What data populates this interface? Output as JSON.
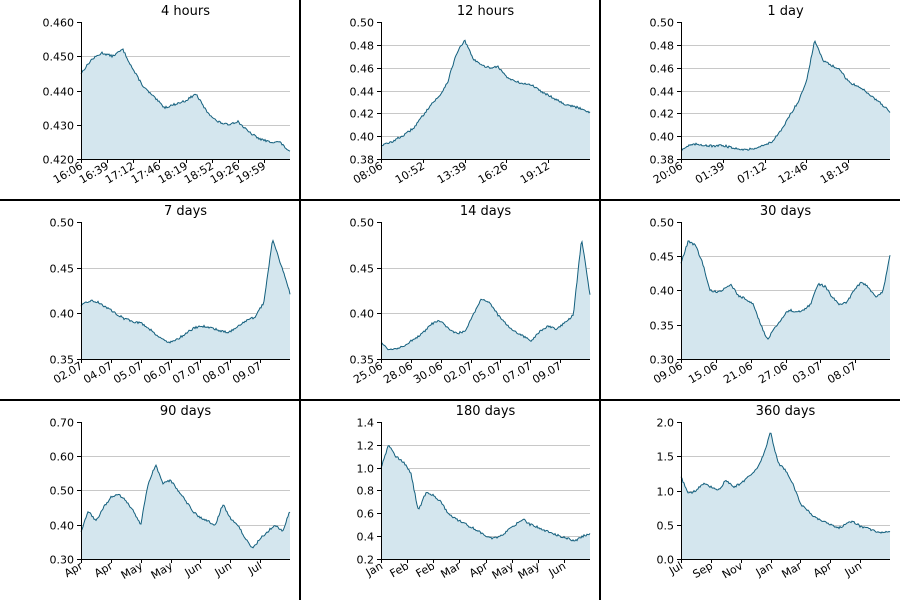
{
  "colors": {
    "line": "#135f7d",
    "area": "#d4e6ee",
    "grid": "#c8c8c8",
    "separator": "#000000"
  },
  "chart_data": [
    {
      "type": "area",
      "title": "4 hours",
      "ylim": [
        0.42,
        0.46
      ],
      "yticks": [
        "0.420",
        "0.430",
        "0.440",
        "0.450",
        "0.460"
      ],
      "xticks": [
        "16:06",
        "16:39",
        "17:12",
        "17:46",
        "18:19",
        "18:52",
        "19:26",
        "19:59"
      ],
      "grid": true,
      "series": [
        {
          "values": [
            0.445,
            0.449,
            0.451,
            0.45,
            0.452,
            0.446,
            0.441,
            0.438,
            0.435,
            0.436,
            0.437,
            0.439,
            0.434,
            0.431,
            0.43,
            0.431,
            0.428,
            0.426,
            0.425,
            0.425,
            0.422
          ]
        }
      ]
    },
    {
      "type": "area",
      "title": "12 hours",
      "ylim": [
        0.38,
        0.5
      ],
      "yticks": [
        "0.38",
        "0.40",
        "0.42",
        "0.44",
        "0.46",
        "0.48",
        "0.50"
      ],
      "xticks": [
        "08:06",
        "10:52",
        "13:39",
        "16:26",
        "19:12"
      ],
      "grid": true,
      "series": [
        {
          "values": [
            0.392,
            0.394,
            0.398,
            0.402,
            0.408,
            0.418,
            0.428,
            0.435,
            0.448,
            0.472,
            0.484,
            0.468,
            0.462,
            0.46,
            0.461,
            0.452,
            0.448,
            0.446,
            0.445,
            0.44,
            0.436,
            0.432,
            0.428,
            0.426,
            0.424,
            0.421
          ]
        }
      ]
    },
    {
      "type": "area",
      "title": "1 day",
      "ylim": [
        0.38,
        0.5
      ],
      "yticks": [
        "0.38",
        "0.40",
        "0.42",
        "0.44",
        "0.46",
        "0.48",
        "0.50"
      ],
      "xticks": [
        "20:06",
        "01:39",
        "07:12",
        "12:46",
        "18:19"
      ],
      "grid": true,
      "series": [
        {
          "values": [
            0.388,
            0.392,
            0.393,
            0.392,
            0.391,
            0.392,
            0.39,
            0.389,
            0.388,
            0.39,
            0.392,
            0.396,
            0.405,
            0.418,
            0.43,
            0.448,
            0.484,
            0.466,
            0.462,
            0.458,
            0.448,
            0.444,
            0.44,
            0.434,
            0.428,
            0.421
          ]
        }
      ]
    },
    {
      "type": "area",
      "title": "7 days",
      "ylim": [
        0.35,
        0.5
      ],
      "yticks": [
        "0.35",
        "0.40",
        "0.45",
        "0.50"
      ],
      "xticks": [
        "02.07",
        "04.07",
        "05.07",
        "06.07",
        "07.07",
        "08.07",
        "09.07"
      ],
      "grid": true,
      "series": [
        {
          "values": [
            0.408,
            0.414,
            0.412,
            0.406,
            0.4,
            0.394,
            0.391,
            0.389,
            0.382,
            0.374,
            0.368,
            0.371,
            0.378,
            0.384,
            0.386,
            0.384,
            0.381,
            0.379,
            0.386,
            0.392,
            0.396,
            0.412,
            0.482,
            0.452,
            0.422
          ]
        }
      ]
    },
    {
      "type": "area",
      "title": "14 days",
      "ylim": [
        0.35,
        0.5
      ],
      "yticks": [
        "0.35",
        "0.40",
        "0.45",
        "0.50"
      ],
      "xticks": [
        "25.06",
        "28.06",
        "30.06",
        "02.07",
        "05.07",
        "07.07",
        "09.07"
      ],
      "grid": true,
      "series": [
        {
          "values": [
            0.368,
            0.36,
            0.362,
            0.366,
            0.372,
            0.378,
            0.388,
            0.392,
            0.384,
            0.378,
            0.38,
            0.398,
            0.416,
            0.412,
            0.398,
            0.388,
            0.38,
            0.375,
            0.37,
            0.38,
            0.386,
            0.382,
            0.39,
            0.398,
            0.482,
            0.42
          ]
        }
      ]
    },
    {
      "type": "area",
      "title": "30 days",
      "ylim": [
        0.3,
        0.5
      ],
      "yticks": [
        "0.30",
        "0.35",
        "0.40",
        "0.45",
        "0.50"
      ],
      "xticks": [
        "09.06",
        "15.06",
        "21.06",
        "27.06",
        "03.07",
        "08.07"
      ],
      "grid": true,
      "series": [
        {
          "values": [
            0.44,
            0.472,
            0.466,
            0.44,
            0.4,
            0.398,
            0.402,
            0.408,
            0.392,
            0.388,
            0.38,
            0.352,
            0.328,
            0.345,
            0.36,
            0.372,
            0.368,
            0.372,
            0.38,
            0.41,
            0.406,
            0.39,
            0.38,
            0.382,
            0.4,
            0.412,
            0.405,
            0.39,
            0.398,
            0.452
          ]
        }
      ]
    },
    {
      "type": "area",
      "title": "90 days",
      "ylim": [
        0.3,
        0.7
      ],
      "yticks": [
        "0.30",
        "0.40",
        "0.50",
        "0.60",
        "0.70"
      ],
      "xticks": [
        "Apr",
        "Apr",
        "May",
        "May",
        "Jun",
        "Jun",
        "Jul"
      ],
      "grid": true,
      "series": [
        {
          "values": [
            0.38,
            0.44,
            0.41,
            0.45,
            0.48,
            0.49,
            0.47,
            0.44,
            0.4,
            0.52,
            0.575,
            0.52,
            0.53,
            0.5,
            0.47,
            0.44,
            0.42,
            0.41,
            0.4,
            0.46,
            0.42,
            0.4,
            0.36,
            0.33,
            0.36,
            0.38,
            0.4,
            0.38,
            0.44
          ]
        }
      ]
    },
    {
      "type": "area",
      "title": "180 days",
      "ylim": [
        0.2,
        1.4
      ],
      "yticks": [
        "0.2",
        "0.4",
        "0.6",
        "0.8",
        "1.0",
        "1.2",
        "1.4"
      ],
      "xticks": [
        "Jan",
        "Feb",
        "Feb",
        "Mar",
        "Apr",
        "May",
        "May",
        "Jun"
      ],
      "grid": true,
      "series": [
        {
          "values": [
            1.0,
            1.2,
            1.1,
            1.05,
            0.95,
            0.62,
            0.78,
            0.76,
            0.7,
            0.6,
            0.55,
            0.52,
            0.48,
            0.45,
            0.4,
            0.38,
            0.4,
            0.45,
            0.5,
            0.55,
            0.5,
            0.48,
            0.45,
            0.42,
            0.4,
            0.38,
            0.36,
            0.4,
            0.42
          ]
        }
      ]
    },
    {
      "type": "area",
      "title": "360 days",
      "ylim": [
        0.0,
        2.0
      ],
      "yticks": [
        "0.0",
        "0.5",
        "1.0",
        "1.5",
        "2.0"
      ],
      "xticks": [
        "Jul",
        "Sep",
        "Nov",
        "Jan",
        "Mar",
        "Apr",
        "Jun"
      ],
      "grid": true,
      "series": [
        {
          "values": [
            1.2,
            0.95,
            1.0,
            1.1,
            1.05,
            1.0,
            1.15,
            1.05,
            1.1,
            1.2,
            1.3,
            1.5,
            1.85,
            1.4,
            1.3,
            1.1,
            0.8,
            0.7,
            0.6,
            0.55,
            0.5,
            0.45,
            0.5,
            0.55,
            0.48,
            0.45,
            0.4,
            0.38,
            0.4
          ]
        }
      ]
    }
  ]
}
